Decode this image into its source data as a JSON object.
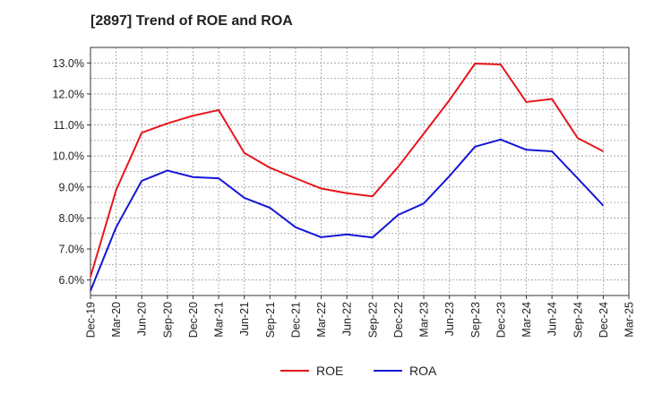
{
  "chart_data": {
    "type": "line",
    "title": "[2897]  Trend of ROE and ROA",
    "xlabel": "",
    "ylabel": "",
    "categories": [
      "Dec-19",
      "Mar-20",
      "Jun-20",
      "Sep-20",
      "Dec-20",
      "Mar-21",
      "Jun-21",
      "Sep-21",
      "Dec-21",
      "Mar-22",
      "Jun-22",
      "Sep-22",
      "Dec-22",
      "Mar-23",
      "Jun-23",
      "Sep-23",
      "Dec-23",
      "Mar-24",
      "Jun-24",
      "Sep-24",
      "Dec-24",
      "Mar-25"
    ],
    "yticks": [
      "6.0%",
      "7.0%",
      "8.0%",
      "9.0%",
      "10.0%",
      "11.0%",
      "12.0%",
      "13.0%"
    ],
    "ylim": [
      5.5,
      13.5
    ],
    "grid": true,
    "legend_position": "bottom",
    "series": [
      {
        "name": "ROE",
        "color": "#e8151b",
        "values": [
          6.1,
          8.9,
          10.75,
          11.05,
          11.3,
          11.48,
          10.1,
          9.62,
          9.28,
          8.95,
          8.8,
          8.7,
          9.65,
          10.72,
          11.8,
          12.98,
          12.95,
          11.74,
          11.84,
          10.58,
          10.15,
          null
        ]
      },
      {
        "name": "ROA",
        "color": "#1515d8",
        "values": [
          5.65,
          7.7,
          9.2,
          9.53,
          9.32,
          9.28,
          8.65,
          8.33,
          7.7,
          7.38,
          7.47,
          7.37,
          8.1,
          8.47,
          9.35,
          10.3,
          10.53,
          10.2,
          10.15,
          9.28,
          8.4,
          null
        ]
      }
    ]
  }
}
